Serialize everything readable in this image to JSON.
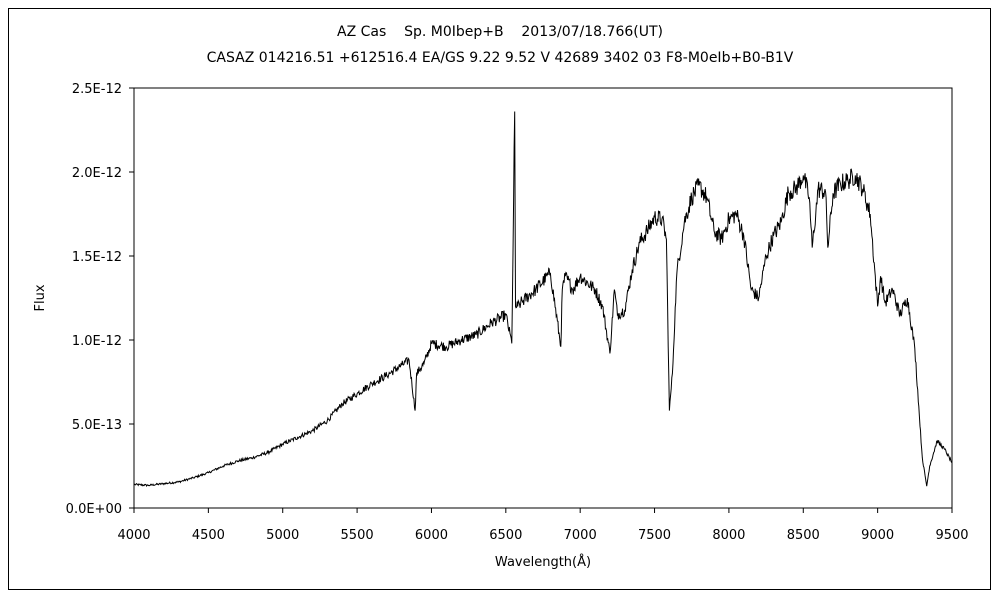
{
  "chart_data": {
    "type": "line",
    "title": "AZ Cas    Sp. M0Ibep+B    2013/07/18.766(UT)",
    "subtitle": "CASAZ 014216.51 +612516.4 EA/GS 9.22 9.52 V 42689 3402 03 F8-M0eIb+B0-B1V",
    "xlabel": "Wavelength(Å)",
    "ylabel": "Flux",
    "xlim": [
      4000,
      9500
    ],
    "ylim": [
      0,
      2.5e-12
    ],
    "grid": false,
    "x_ticks": [
      4000,
      4500,
      5000,
      5500,
      6000,
      6500,
      7000,
      7500,
      8000,
      8500,
      9000,
      9500
    ],
    "x_tick_labels": [
      "4000",
      "4500",
      "5000",
      "5500",
      "6000",
      "6500",
      "7000",
      "7500",
      "8000",
      "8500",
      "9000",
      "9500"
    ],
    "y_ticks": [
      0,
      5e-13,
      1e-12,
      1.5e-12,
      2e-12,
      2.5e-12
    ],
    "y_tick_labels": [
      "0.0E+00",
      "5.0E-13",
      "1.0E-12",
      "1.5E-12",
      "2.0E-12",
      "2.5E-12"
    ],
    "series": [
      {
        "color": "#000000",
        "x": [
          4000,
          4100,
          4200,
          4300,
          4400,
          4500,
          4600,
          4700,
          4800,
          4900,
          5000,
          5100,
          5200,
          5300,
          5400,
          5500,
          5600,
          5700,
          5800,
          5850,
          5890,
          5900,
          5950,
          6000,
          6100,
          6200,
          6300,
          6400,
          6500,
          6540,
          6560,
          6565,
          6580,
          6600,
          6700,
          6800,
          6870,
          6880,
          6900,
          6950,
          7000,
          7100,
          7150,
          7200,
          7230,
          7250,
          7300,
          7350,
          7400,
          7450,
          7500,
          7550,
          7580,
          7600,
          7620,
          7650,
          7700,
          7750,
          7800,
          7850,
          7900,
          7950,
          8000,
          8050,
          8100,
          8150,
          8200,
          8250,
          8300,
          8350,
          8400,
          8450,
          8500,
          8540,
          8560,
          8600,
          8650,
          8665,
          8700,
          8750,
          8800,
          8850,
          8900,
          8950,
          9000,
          9020,
          9050,
          9100,
          9150,
          9200,
          9250,
          9300,
          9330,
          9350,
          9400,
          9450,
          9500
        ],
        "y": [
          1.4e-13,
          1.35e-13,
          1.45e-13,
          1.55e-13,
          1.8e-13,
          2.1e-13,
          2.5e-13,
          2.8e-13,
          3e-13,
          3.3e-13,
          3.8e-13,
          4.2e-13,
          4.6e-13,
          5.2e-13,
          6.2e-13,
          6.8e-13,
          7.4e-13,
          7.9e-13,
          8.5e-13,
          8.8e-13,
          5.8e-13,
          8e-13,
          8.6e-13,
          9.8e-13,
          9.6e-13,
          1e-12,
          1.03e-12,
          1.1e-12,
          1.15e-12,
          9.8e-13,
          2.36e-12,
          1.2e-12,
          1.2e-12,
          1.22e-12,
          1.3e-12,
          1.4e-12,
          9.6e-13,
          1.3e-12,
          1.38e-12,
          1.3e-12,
          1.38e-12,
          1.3e-12,
          1.2e-12,
          9.2e-13,
          1.3e-12,
          1.15e-12,
          1.18e-12,
          1.42e-12,
          1.58e-12,
          1.65e-12,
          1.73e-12,
          1.72e-12,
          1.6e-12,
          5.8e-13,
          8e-13,
          1.4e-12,
          1.7e-12,
          1.85e-12,
          1.92e-12,
          1.85e-12,
          1.65e-12,
          1.6e-12,
          1.72e-12,
          1.75e-12,
          1.62e-12,
          1.3e-12,
          1.25e-12,
          1.5e-12,
          1.62e-12,
          1.7e-12,
          1.88e-12,
          1.9e-12,
          1.98e-12,
          1.85e-12,
          1.55e-12,
          1.9e-12,
          1.88e-12,
          1.55e-12,
          1.87e-12,
          1.93e-12,
          1.95e-12,
          1.98e-12,
          1.9e-12,
          1.75e-12,
          1.2e-12,
          1.38e-12,
          1.22e-12,
          1.3e-12,
          1.15e-12,
          1.25e-12,
          9.5e-13,
          3e-13,
          1.3e-13,
          2.5e-13,
          4e-13,
          3.5e-13,
          2.7e-13
        ]
      }
    ]
  }
}
